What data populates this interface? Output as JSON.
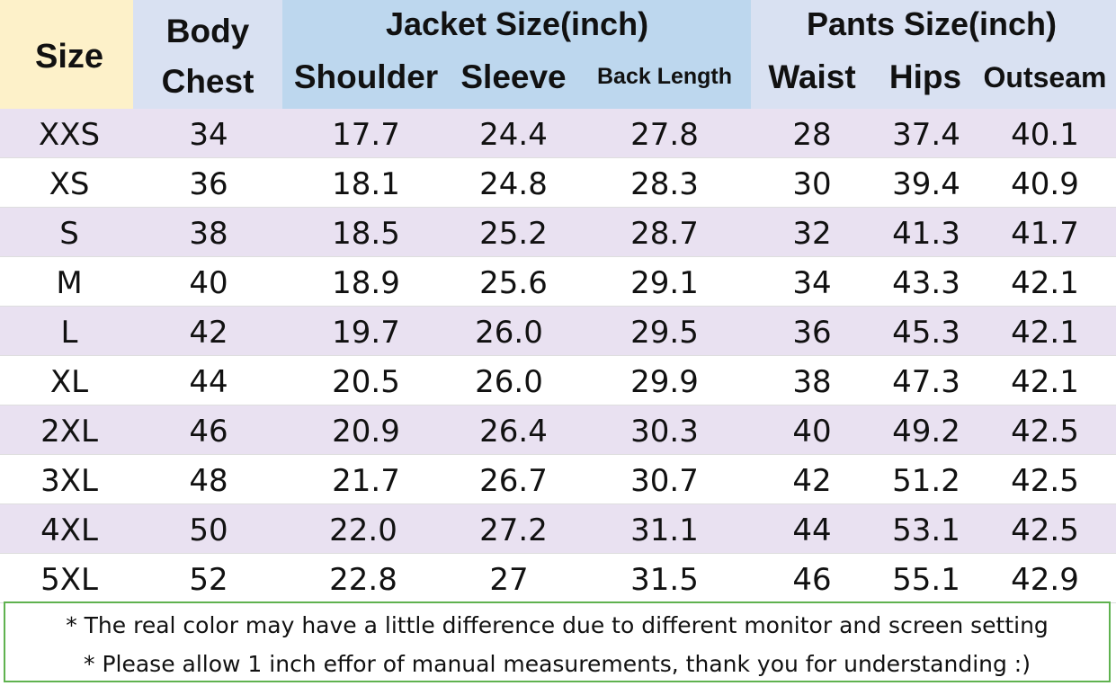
{
  "header": {
    "size": "Size",
    "body_chest_line1": "Body",
    "body_chest_line2": "Chest",
    "jacket_group": "Jacket Size(inch)",
    "pants_group": "Pants Size(inch)",
    "shoulder": "Shoulder",
    "sleeve": "Sleeve",
    "back_length": "Back Length",
    "waist": "Waist",
    "hips": "Hips",
    "outseam": "Outseam"
  },
  "rows": [
    [
      "XXS",
      "34",
      "17.7",
      "24.4",
      "27.8",
      "28",
      "37.4",
      "40.1"
    ],
    [
      "XS",
      "36",
      "18.1",
      "24.8",
      "28.3",
      "30",
      "39.4",
      "40.9"
    ],
    [
      "S",
      "38",
      "18.5",
      "25.2",
      "28.7",
      "32",
      "41.3",
      "41.7"
    ],
    [
      "M",
      "40",
      "18.9",
      "25.6",
      "29.1",
      "34",
      "43.3",
      "42.1"
    ],
    [
      "L",
      "42",
      "19.7",
      "26.0",
      "29.5",
      "36",
      "45.3",
      "42.1"
    ],
    [
      "XL",
      "44",
      "20.5",
      "26.0",
      "29.9",
      "38",
      "47.3",
      "42.1"
    ],
    [
      "2XL",
      "46",
      "20.9",
      "26.4",
      "30.3",
      "40",
      "49.2",
      "42.5"
    ],
    [
      "3XL",
      "48",
      "21.7",
      "26.7",
      "30.7",
      "42",
      "51.2",
      "42.5"
    ],
    [
      "4XL",
      "50",
      "22.0",
      "27.2",
      "31.1",
      "44",
      "53.1",
      "42.5"
    ],
    [
      "5XL",
      "52",
      "22.8",
      "27",
      "31.5",
      "46",
      "55.1",
      "42.9"
    ]
  ],
  "notes": [
    "* The real color may have a little difference due to different monitor and screen setting",
    "* Please allow 1 inch effor of manual measurements, thank you for understanding  :)"
  ],
  "colors": {
    "size_header_bg": "#fdf1c9",
    "chest_header_bg": "#d9e1f2",
    "jacket_header_bg": "#bdd7ee",
    "pants_header_bg": "#d9e1f2",
    "shaded_row_bg": "#e9e1f1",
    "notes_border": "#5fb24f"
  }
}
